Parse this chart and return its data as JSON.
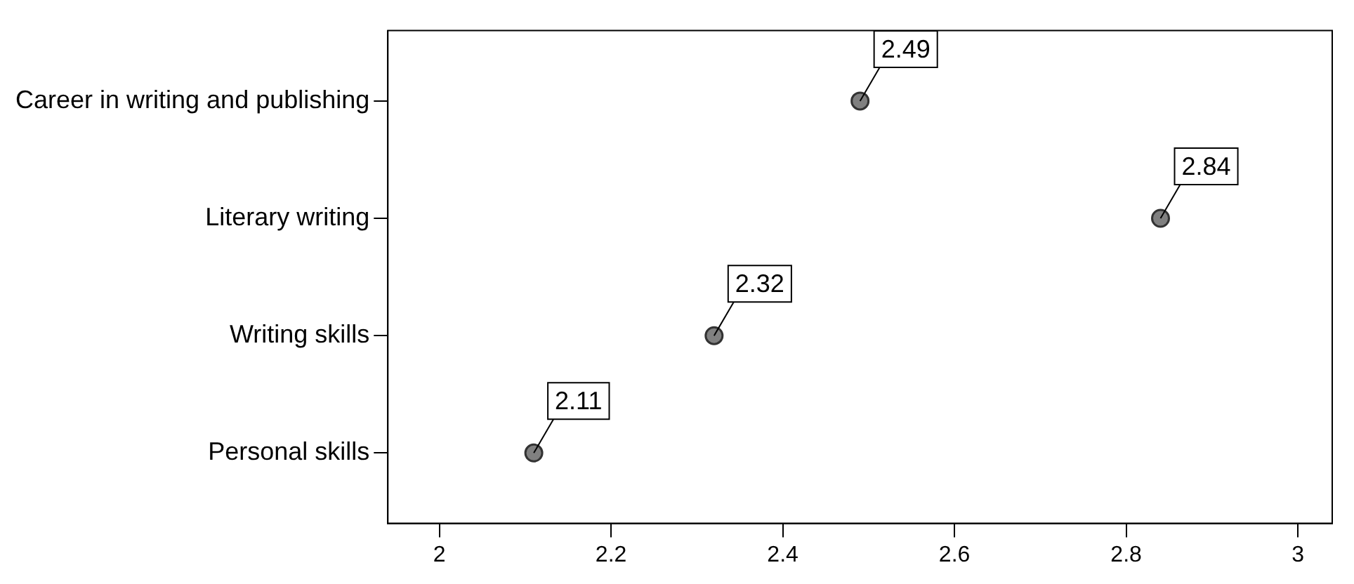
{
  "chart_data": {
    "type": "scatter",
    "orientation": "horizontal",
    "categories": [
      "Career in writing and publishing",
      "Literary writing",
      "Writing skills",
      "Personal skills"
    ],
    "values": [
      2.49,
      2.84,
      2.32,
      2.11
    ],
    "color": "#808080",
    "marker": "circle",
    "data_labels": true,
    "grid": false,
    "legend": false,
    "xlim": [
      1.94,
      3.04
    ],
    "xticks": [
      2,
      {
        "value": 2.2,
        "label": "2.2"
      },
      {
        "value": 2.4,
        "label": "2.4"
      },
      {
        "value": 2.6,
        "label": "2.6"
      },
      {
        "value": 2.8,
        "label": "2.8"
      },
      3
    ]
  }
}
